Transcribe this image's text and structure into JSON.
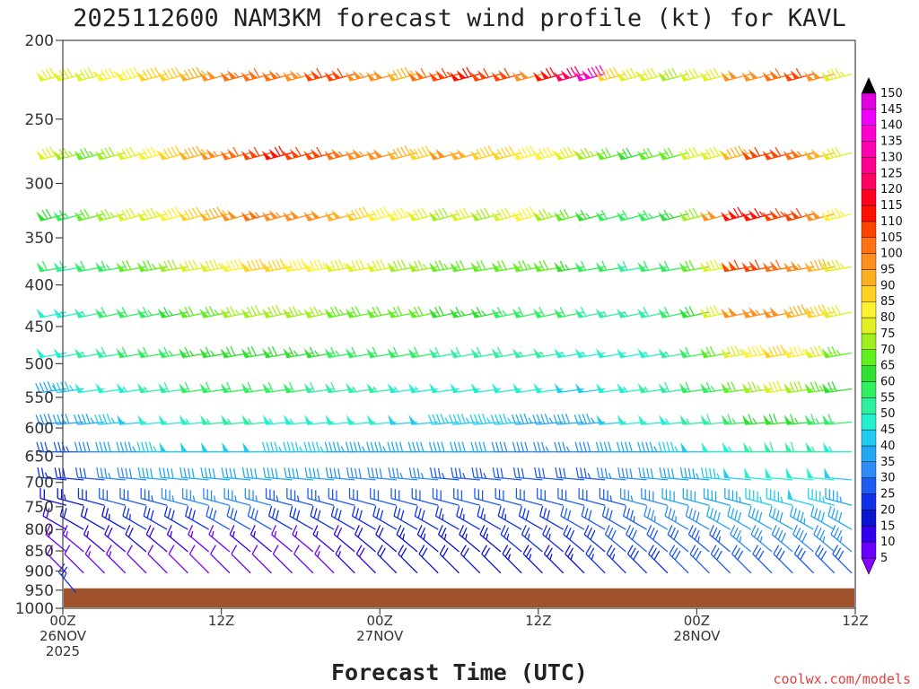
{
  "chart_data": {
    "type": "wind-barb-profile",
    "title": "2025112600 NAM3KM forecast wind profile (kt) for KAVL",
    "xlabel": "Forecast Time (UTC)",
    "credit": "coolwx.com/models",
    "units": "kt",
    "y_levels_hpa": [
      200,
      250,
      300,
      350,
      400,
      450,
      500,
      550,
      600,
      650,
      700,
      750,
      800,
      850,
      900,
      950,
      1000
    ],
    "ylim": [
      1000,
      200
    ],
    "xlim_hours": [
      0,
      60
    ],
    "x_ticks": [
      {
        "hour": 0,
        "lines": [
          "00Z",
          "26NOV",
          "2025"
        ]
      },
      {
        "hour": 12,
        "lines": [
          "12Z"
        ]
      },
      {
        "hour": 24,
        "lines": [
          "00Z",
          "27NOV"
        ]
      },
      {
        "hour": 36,
        "lines": [
          "12Z"
        ]
      },
      {
        "hour": 48,
        "lines": [
          "00Z",
          "28NOV"
        ]
      },
      {
        "hour": 60,
        "lines": [
          "12Z"
        ]
      }
    ],
    "surface_pressure_hpa": 945,
    "colorbar": {
      "levels": [
        5,
        10,
        15,
        20,
        25,
        30,
        35,
        40,
        45,
        50,
        55,
        60,
        65,
        70,
        75,
        80,
        85,
        90,
        95,
        100,
        105,
        110,
        115,
        120,
        125,
        130,
        135,
        140,
        145,
        150
      ],
      "colors": [
        "#8800ff",
        "#6a00ff",
        "#3300ee",
        "#0a14d0",
        "#1030e8",
        "#1e5cf0",
        "#2d8cf5",
        "#22a8f0",
        "#22ccf0",
        "#22f0d0",
        "#30f0a0",
        "#30f060",
        "#30e030",
        "#60f020",
        "#a0f020",
        "#e0f020",
        "#fff030",
        "#ffd020",
        "#ffb020",
        "#ff9020",
        "#ff7010",
        "#ff4400",
        "#ff1000",
        "#ff0020",
        "#ff0060",
        "#ff0090",
        "#ff00b0",
        "#ff00d0",
        "#f000ff",
        "#e000e0"
      ]
    },
    "wind_levels_hpa": [
      220,
      275,
      327,
      380,
      432,
      485,
      537,
      590,
      642,
      695,
      747,
      800,
      852,
      905,
      957
    ],
    "wind_dir_deg": {
      "220": 255,
      "275": 255,
      "327": 255,
      "380": 260,
      "432": 258,
      "485": 260,
      "537": 262,
      "590": 265,
      "642": 270,
      "695": 275,
      "747": 285,
      "800": 300,
      "852": 310,
      "905": 315,
      "957": 320
    },
    "wind_speed_kt_by_level": {
      "220": [
        82,
        82,
        84,
        86,
        88,
        90,
        92,
        96,
        100,
        106,
        108,
        106,
        104,
        110,
        112,
        104,
        100,
        96,
        108,
        114,
        118,
        112,
        110,
        102,
        118,
        128,
        140,
        90,
        84,
        80,
        78,
        82,
        80,
        100,
        102,
        108,
        110,
        100,
        84
      ],
      "275": [
        80,
        76,
        74,
        78,
        82,
        86,
        90,
        96,
        104,
        108,
        112,
        118,
        112,
        110,
        106,
        104,
        100,
        96,
        92,
        100,
        98,
        92,
        90,
        88,
        86,
        84,
        76,
        70,
        68,
        70,
        72,
        80,
        84,
        95,
        110,
        110,
        105,
        98,
        82
      ],
      "327": [
        68,
        64,
        70,
        76,
        82,
        84,
        88,
        90,
        96,
        100,
        106,
        104,
        102,
        100,
        98,
        92,
        88,
        86,
        82,
        78,
        80,
        78,
        82,
        88,
        76,
        70,
        66,
        62,
        60,
        64,
        66,
        78,
        102,
        118,
        116,
        114,
        110,
        100,
        86
      ],
      "380": [
        62,
        58,
        60,
        64,
        70,
        74,
        78,
        80,
        84,
        88,
        90,
        90,
        88,
        86,
        84,
        82,
        80,
        78,
        76,
        74,
        72,
        70,
        72,
        74,
        70,
        66,
        62,
        60,
        58,
        60,
        62,
        70,
        84,
        110,
        112,
        108,
        104,
        96,
        84
      ],
      "432": [
        52,
        54,
        56,
        60,
        62,
        64,
        66,
        70,
        74,
        76,
        78,
        78,
        76,
        76,
        74,
        72,
        72,
        70,
        70,
        68,
        66,
        66,
        64,
        62,
        62,
        60,
        58,
        56,
        56,
        58,
        60,
        68,
        80,
        102,
        104,
        100,
        96,
        90,
        80
      ],
      "485": [
        50,
        52,
        56,
        58,
        60,
        62,
        64,
        66,
        66,
        68,
        68,
        68,
        66,
        66,
        64,
        62,
        62,
        60,
        60,
        58,
        58,
        58,
        58,
        56,
        56,
        54,
        54,
        52,
        52,
        54,
        56,
        62,
        72,
        84,
        88,
        90,
        86,
        82,
        74
      ],
      "537": [
        44,
        46,
        50,
        52,
        54,
        56,
        58,
        60,
        62,
        62,
        62,
        60,
        60,
        58,
        58,
        56,
        56,
        54,
        54,
        52,
        52,
        52,
        52,
        50,
        50,
        48,
        48,
        52,
        54,
        56,
        58,
        60,
        64,
        70,
        76,
        80,
        78,
        74,
        68
      ],
      "590": [
        38,
        40,
        44,
        46,
        48,
        50,
        52,
        54,
        56,
        56,
        56,
        54,
        54,
        52,
        52,
        50,
        50,
        48,
        48,
        46,
        46,
        46,
        46,
        44,
        44,
        42,
        44,
        48,
        50,
        52,
        54,
        56,
        58,
        64,
        66,
        68,
        66,
        64,
        62
      ],
      "642": [
        30,
        34,
        38,
        42,
        44,
        46,
        48,
        48,
        48,
        48,
        48,
        46,
        46,
        46,
        44,
        44,
        44,
        42,
        42,
        40,
        40,
        40,
        38,
        38,
        36,
        36,
        38,
        40,
        42,
        44,
        46,
        48,
        50,
        54,
        56,
        58,
        58,
        56,
        54
      ],
      "695": [
        26,
        28,
        32,
        36,
        38,
        40,
        42,
        42,
        42,
        42,
        42,
        40,
        40,
        40,
        38,
        38,
        38,
        36,
        36,
        34,
        34,
        34,
        32,
        32,
        30,
        32,
        34,
        36,
        38,
        40,
        42,
        44,
        46,
        48,
        50,
        52,
        52,
        50,
        48
      ],
      "747": [
        22,
        24,
        28,
        30,
        32,
        34,
        36,
        36,
        36,
        36,
        36,
        34,
        34,
        34,
        32,
        32,
        32,
        30,
        30,
        30,
        30,
        30,
        30,
        30,
        30,
        30,
        32,
        34,
        36,
        38,
        40,
        40,
        42,
        44,
        46,
        46,
        48,
        46,
        44
      ],
      "800": [
        18,
        20,
        22,
        24,
        26,
        28,
        28,
        28,
        30,
        30,
        30,
        28,
        28,
        28,
        28,
        28,
        28,
        28,
        28,
        26,
        26,
        26,
        26,
        28,
        28,
        30,
        30,
        32,
        34,
        36,
        36,
        38,
        40,
        40,
        42,
        42,
        44,
        42,
        40
      ],
      "852": [
        14,
        14,
        16,
        18,
        20,
        18,
        16,
        14,
        14,
        16,
        16,
        14,
        14,
        16,
        18,
        20,
        22,
        24,
        24,
        24,
        24,
        24,
        26,
        26,
        26,
        28,
        28,
        30,
        30,
        32,
        32,
        34,
        34,
        36,
        36,
        38,
        38,
        36,
        36
      ],
      "905": [
        12,
        12,
        14,
        14,
        12,
        10,
        8,
        8,
        10,
        12,
        12,
        10,
        12,
        14,
        16,
        18,
        20,
        20,
        22,
        22,
        22,
        22,
        24,
        24,
        24,
        24,
        26,
        26,
        28,
        28,
        30,
        30,
        30,
        32,
        32,
        32,
        32,
        30,
        30
      ],
      "957": [
        26
      ]
    }
  }
}
